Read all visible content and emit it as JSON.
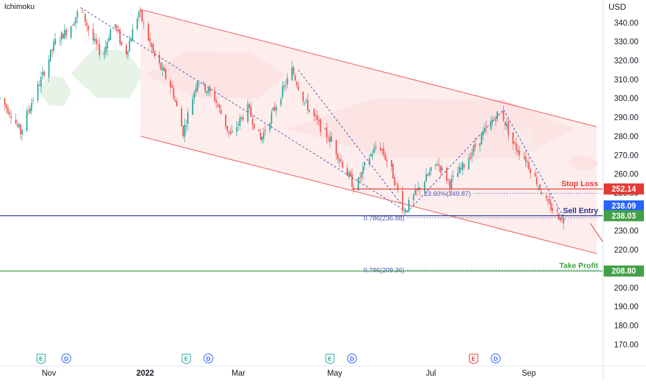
{
  "indicator_name": "Ichimoku",
  "currency": "USD",
  "chart_data": {
    "type": "candlestick",
    "title": "",
    "xlabel": "",
    "ylabel": "",
    "ylim": [
      163,
      352
    ],
    "y_ticks": [
      170,
      180,
      190,
      200,
      210,
      220,
      230,
      240,
      250,
      260,
      270,
      280,
      290,
      300,
      310,
      320,
      330,
      340
    ],
    "x_ticks": [
      {
        "label": "Nov",
        "date": "2021-11-01"
      },
      {
        "label": "2022",
        "date": "2022-01-01"
      },
      {
        "label": "Mar",
        "date": "2022-03-01"
      },
      {
        "label": "May",
        "date": "2022-05-01"
      },
      {
        "label": "Jul",
        "date": "2022-07-01"
      },
      {
        "label": "Sep",
        "date": "2022-09-01"
      }
    ],
    "date_range": [
      "2021-10-01",
      "2022-10-18"
    ],
    "grid": false,
    "price_path": [
      {
        "date": "2021-10-01",
        "price": 300
      },
      {
        "date": "2021-10-08",
        "price": 292
      },
      {
        "date": "2021-10-14",
        "price": 282
      },
      {
        "date": "2021-10-20",
        "price": 296
      },
      {
        "date": "2021-10-27",
        "price": 310
      },
      {
        "date": "2021-11-05",
        "price": 330
      },
      {
        "date": "2021-11-14",
        "price": 337
      },
      {
        "date": "2021-11-21",
        "price": 348
      },
      {
        "date": "2021-11-28",
        "price": 332
      },
      {
        "date": "2021-12-05",
        "price": 322
      },
      {
        "date": "2021-12-12",
        "price": 342
      },
      {
        "date": "2021-12-19",
        "price": 322
      },
      {
        "date": "2021-12-28",
        "price": 346
      },
      {
        "date": "2022-01-07",
        "price": 322
      },
      {
        "date": "2022-01-18",
        "price": 305
      },
      {
        "date": "2022-01-25",
        "price": 282
      },
      {
        "date": "2022-02-03",
        "price": 310
      },
      {
        "date": "2022-02-14",
        "price": 300
      },
      {
        "date": "2022-02-24",
        "price": 280
      },
      {
        "date": "2022-03-07",
        "price": 295
      },
      {
        "date": "2022-03-15",
        "price": 278
      },
      {
        "date": "2022-03-23",
        "price": 293
      },
      {
        "date": "2022-04-04",
        "price": 315
      },
      {
        "date": "2022-04-12",
        "price": 298
      },
      {
        "date": "2022-04-21",
        "price": 286
      },
      {
        "date": "2022-04-29",
        "price": 277
      },
      {
        "date": "2022-05-08",
        "price": 262
      },
      {
        "date": "2022-05-14",
        "price": 252
      },
      {
        "date": "2022-05-22",
        "price": 268
      },
      {
        "date": "2022-05-29",
        "price": 276
      },
      {
        "date": "2022-06-06",
        "price": 262
      },
      {
        "date": "2022-06-14",
        "price": 240
      },
      {
        "date": "2022-06-20",
        "price": 248
      },
      {
        "date": "2022-06-28",
        "price": 258
      },
      {
        "date": "2022-07-05",
        "price": 266
      },
      {
        "date": "2022-07-13",
        "price": 255
      },
      {
        "date": "2022-07-22",
        "price": 265
      },
      {
        "date": "2022-08-02",
        "price": 280
      },
      {
        "date": "2022-08-14",
        "price": 294
      },
      {
        "date": "2022-08-22",
        "price": 276
      },
      {
        "date": "2022-08-30",
        "price": 268
      },
      {
        "date": "2022-09-06",
        "price": 256
      },
      {
        "date": "2022-09-13",
        "price": 244
      },
      {
        "date": "2022-09-20",
        "price": 238
      },
      {
        "date": "2022-09-25",
        "price": 234
      }
    ],
    "ichimoku_cloud": [
      {
        "from": "2021-10-25",
        "to": "2021-11-15",
        "high": 312,
        "low": 296,
        "bias": "bullish"
      },
      {
        "from": "2021-11-15",
        "to": "2021-12-31",
        "high": 326,
        "low": 300,
        "bias": "bullish"
      },
      {
        "from": "2022-01-01",
        "to": "2022-03-31",
        "high": 325,
        "low": 300,
        "bias": "bearish"
      },
      {
        "from": "2022-04-01",
        "to": "2022-09-30",
        "high": 300,
        "low": 268,
        "bias": "bearish"
      },
      {
        "from": "2022-08-20",
        "to": "2022-09-05",
        "high": 285,
        "low": 270,
        "bias": "bullish"
      },
      {
        "from": "2022-09-25",
        "to": "2022-10-15",
        "high": 270,
        "low": 262,
        "bias": "bearish"
      }
    ],
    "channel": {
      "upper": [
        {
          "date": "2021-12-29",
          "price": 347
        },
        {
          "date": "2022-10-14",
          "price": 285
        }
      ],
      "lower": [
        {
          "date": "2021-12-29",
          "price": 280
        },
        {
          "date": "2022-10-14",
          "price": 218
        }
      ]
    },
    "trend_lines": [
      {
        "from": {
          "date": "2021-11-21",
          "price": 348
        },
        "to": {
          "date": "2022-06-16",
          "price": 240
        }
      },
      {
        "from": {
          "date": "2022-04-08",
          "price": 315
        },
        "to": {
          "date": "2022-06-16",
          "price": 240
        }
      },
      {
        "from": {
          "date": "2022-06-16",
          "price": 240
        },
        "to": {
          "date": "2022-08-16",
          "price": 294
        }
      },
      {
        "from": {
          "date": "2022-08-16",
          "price": 294
        },
        "to": {
          "date": "2022-09-24",
          "price": 236
        }
      }
    ],
    "projection_arrow": {
      "from": {
        "date": "2022-10-10",
        "price": 234
      },
      "to": {
        "date": "2022-10-18",
        "price": 224
      }
    },
    "levels": [
      {
        "label": "Stop Loss",
        "price": 252.14,
        "badge": "252.14",
        "color": "#e53935",
        "from_date": "2022-05-12",
        "style": "solid"
      },
      {
        "label": "Sell Entry",
        "price": 238.03,
        "badge": "238.03",
        "color": "#283593",
        "from_date": "2021-10-01",
        "style": "solid"
      },
      {
        "label": "Take Profit",
        "price": 208.8,
        "badge": "208.80",
        "color": "#43a047",
        "from_date": "2021-10-01",
        "style": "solid"
      }
    ],
    "current_price": {
      "price": 238.09,
      "badge": "238.09",
      "color": "#2962ff"
    },
    "fib_levels": [
      {
        "label": "23.60%(249.87)",
        "price": 249.87,
        "from_date": "2022-07-28"
      },
      {
        "label": "0.786(236.88)",
        "price": 236.88,
        "from_date": "2022-06-16"
      },
      {
        "label": "0.786(209.36)",
        "price": 209.36,
        "from_date": "2022-06-16"
      }
    ],
    "events": [
      {
        "type": "E",
        "date": "2021-10-27",
        "color": "#26a69a"
      },
      {
        "type": "D",
        "date": "2021-11-12",
        "color": "#2962ff"
      },
      {
        "type": "E",
        "date": "2022-01-27",
        "color": "#26a69a"
      },
      {
        "type": "D",
        "date": "2022-02-10",
        "color": "#2962ff"
      },
      {
        "type": "E",
        "date": "2022-04-28",
        "color": "#26a69a"
      },
      {
        "type": "D",
        "date": "2022-05-12",
        "color": "#2962ff"
      },
      {
        "type": "E",
        "date": "2022-07-28",
        "color": "#e53935"
      },
      {
        "type": "D",
        "date": "2022-08-11",
        "color": "#2962ff"
      }
    ]
  },
  "colors": {
    "bull_candle": "#26a69a",
    "bear_candle": "#ef5350",
    "channel_fill": "#fde7e7",
    "channel_stroke": "#ef5350",
    "cloud_bullish": "#e6f2e6",
    "cloud_bearish": "#fbd7d7",
    "trend_line": "#3f51b5",
    "axis_text": "#131722"
  }
}
